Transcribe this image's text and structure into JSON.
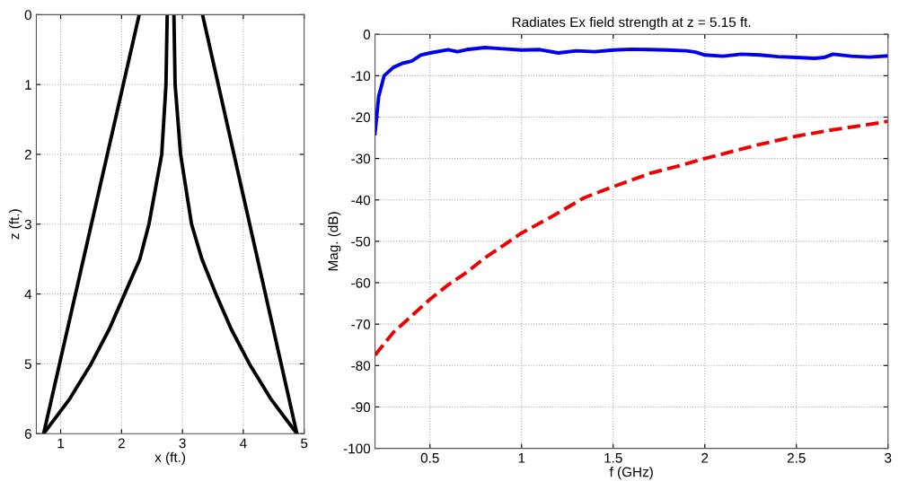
{
  "chart_data": [
    {
      "type": "line",
      "xlabel": "x (ft.)",
      "ylabel": "z (ft.)",
      "xlim": [
        0.6,
        5
      ],
      "ylim": [
        6,
        0
      ],
      "xticks": [
        1,
        2,
        3,
        4,
        5
      ],
      "yticks": [
        0,
        1,
        2,
        3,
        4,
        5,
        6
      ],
      "grid": true,
      "line_style": "solid",
      "series": [
        {
          "color": "#000000",
          "x": [
            2.29,
            0.72
          ],
          "values": [
            0,
            6
          ]
        },
        {
          "color": "#000000",
          "x": [
            3.33,
            4.88
          ],
          "values": [
            0,
            6
          ]
        },
        {
          "color": "#000000",
          "x": [
            2.75,
            2.73,
            2.66,
            2.45,
            2.3,
            2.05,
            1.8,
            1.5,
            1.15,
            0.72
          ],
          "values": [
            0,
            1,
            2,
            3,
            3.5,
            4,
            4.5,
            5,
            5.5,
            6
          ]
        },
        {
          "color": "#000000",
          "x": [
            2.86,
            2.88,
            2.97,
            3.15,
            3.32,
            3.55,
            3.8,
            4.1,
            4.45,
            4.88
          ],
          "values": [
            0,
            1,
            2,
            3,
            3.5,
            4,
            4.5,
            5,
            5.5,
            6
          ]
        }
      ]
    },
    {
      "type": "line",
      "title": "Radiates Ex field strength at z = 5.15 ft.",
      "xlabel": "f (GHz)",
      "ylabel": "Mag. (dB)",
      "xlim": [
        0.2,
        3
      ],
      "ylim": [
        -100,
        0
      ],
      "xticks": [
        0.5,
        1,
        1.5,
        2,
        2.5,
        3
      ],
      "yticks": [
        -100,
        -90,
        -80,
        -70,
        -60,
        -50,
        -40,
        -30,
        -20,
        -10,
        0
      ],
      "grid": true,
      "series": [
        {
          "color": "#0000ee",
          "line_style": "solid",
          "x": [
            0.2,
            0.22,
            0.25,
            0.3,
            0.35,
            0.4,
            0.45,
            0.5,
            0.6,
            0.65,
            0.7,
            0.8,
            0.9,
            1.0,
            1.1,
            1.2,
            1.3,
            1.4,
            1.5,
            1.6,
            1.7,
            1.8,
            1.9,
            1.95,
            2.0,
            2.1,
            2.2,
            2.3,
            2.4,
            2.5,
            2.6,
            2.65,
            2.7,
            2.8,
            2.9,
            3.0
          ],
          "values": [
            -24,
            -15,
            -10,
            -8,
            -7,
            -6.5,
            -5,
            -4.5,
            -3.7,
            -4.2,
            -3.7,
            -3.2,
            -3.5,
            -3.8,
            -3.7,
            -4.5,
            -4.0,
            -4.2,
            -3.8,
            -3.6,
            -3.7,
            -3.8,
            -4.0,
            -4.3,
            -5.0,
            -5.3,
            -4.8,
            -5.0,
            -5.4,
            -5.6,
            -5.8,
            -5.6,
            -4.8,
            -5.3,
            -5.5,
            -5.2
          ]
        },
        {
          "color": "#ee0000",
          "line_style": "dashed",
          "x": [
            0.2,
            0.3,
            0.4,
            0.5,
            0.6,
            0.7,
            0.8,
            0.9,
            1.0,
            1.15,
            1.34,
            1.5,
            1.7,
            1.89,
            2.0,
            2.28,
            2.5,
            2.68,
            2.95,
            3.0
          ],
          "values": [
            -77.5,
            -72,
            -68,
            -64,
            -60.5,
            -57.5,
            -54,
            -51,
            -48,
            -44.4,
            -39.5,
            -36.8,
            -33.6,
            -31.4,
            -30,
            -26.8,
            -24.6,
            -23.2,
            -21.4,
            -21
          ]
        }
      ]
    }
  ]
}
